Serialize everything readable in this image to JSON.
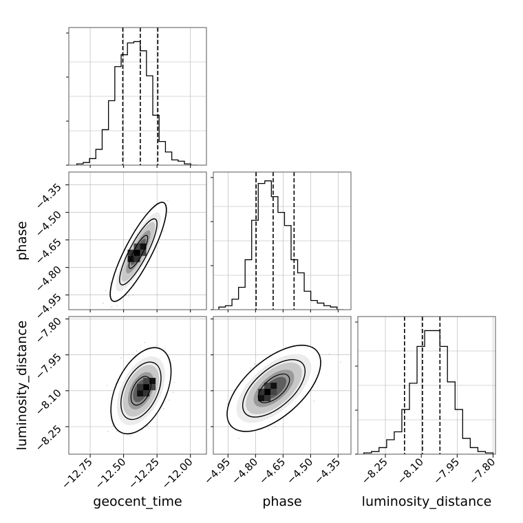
{
  "chart_data": {
    "type": "corner",
    "parameters": [
      {
        "label": "geocent_time",
        "range": [
          -12.91,
          -11.88
        ],
        "ticks": [
          -12.75,
          -12.5,
          -12.25,
          -12.0
        ],
        "tick_labels": [
          "−12.75",
          "−12.50",
          "−12.25",
          "−12.00"
        ],
        "quantiles": [
          -12.506,
          -12.375,
          -12.244
        ]
      },
      {
        "label": "phase",
        "range": [
          -5.03,
          -4.28
        ],
        "ticks": [
          -4.95,
          -4.8,
          -4.65,
          -4.5,
          -4.35
        ],
        "tick_labels": [
          "−4.95",
          "−4.80",
          "−4.65",
          "−4.50",
          "−4.35"
        ],
        "quantiles": [
          -4.797,
          -4.704,
          -4.59
        ]
      },
      {
        "label": "luminosity_distance",
        "range": [
          -8.365,
          -7.79
        ],
        "ticks": [
          -8.25,
          -8.1,
          -7.95,
          -7.8
        ],
        "tick_labels": [
          "−8.25",
          "−8.10",
          "−7.95",
          "−7.80"
        ],
        "quantiles": [
          -8.17,
          -8.095,
          -8.022
        ]
      }
    ],
    "histograms": [
      {
        "parameter": "geocent_time",
        "relative_counts": [
          0.01,
          0.02,
          0.05,
          0.12,
          0.27,
          0.49,
          0.75,
          0.84,
          0.93,
          0.94,
          0.87,
          0.68,
          0.38,
          0.18,
          0.1,
          0.04,
          0.03,
          0.01,
          0.0
        ]
      },
      {
        "parameter": "phase",
        "relative_counts": [
          0.02,
          0.03,
          0.08,
          0.17,
          0.38,
          0.68,
          0.96,
          0.98,
          0.86,
          0.74,
          0.64,
          0.38,
          0.28,
          0.14,
          0.07,
          0.05,
          0.03,
          0.02,
          0.0
        ]
      },
      {
        "parameter": "luminosity_distance",
        "relative_counts": [
          0.01,
          0.02,
          0.05,
          0.11,
          0.17,
          0.34,
          0.54,
          0.82,
          0.94,
          0.94,
          0.82,
          0.55,
          0.34,
          0.12,
          0.05,
          0.02,
          0.01
        ]
      }
    ],
    "pairs": [
      {
        "x": "geocent_time",
        "y": "phase",
        "center": [
          -12.39,
          -4.715
        ],
        "sd": [
          0.07,
          0.09
        ],
        "correlation": 0.85,
        "mode": [
          -12.4,
          -4.72
        ]
      },
      {
        "x": "geocent_time",
        "y": "luminosity_distance",
        "center": [
          -12.37,
          -8.1
        ],
        "sd": [
          0.075,
          0.06
        ],
        "correlation": 0.45,
        "mode": [
          -12.33,
          -8.085
        ]
      },
      {
        "x": "phase",
        "y": "luminosity_distance",
        "center": [
          -4.7,
          -8.09
        ],
        "sd": [
          0.085,
          0.06
        ],
        "correlation": 0.6,
        "mode": [
          -4.735,
          -8.105
        ]
      }
    ],
    "contour_levels": [
      0.39,
      0.86,
      0.99
    ],
    "quantile_lines": "dashed",
    "grid": true
  }
}
